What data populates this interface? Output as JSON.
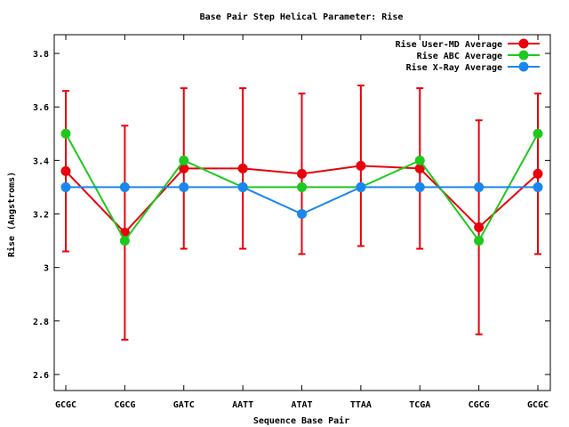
{
  "chart_data": {
    "type": "line",
    "title": "Base Pair Step Helical Parameter: Rise",
    "xlabel": "Sequence Base Pair",
    "ylabel": "Rise (Angstroms)",
    "categories": [
      "GCGC",
      "CGCG",
      "GATC",
      "AATT",
      "ATAT",
      "TTAA",
      "TCGA",
      "CGCG",
      "GCGC"
    ],
    "ylim": [
      2.54,
      3.87
    ],
    "yticks": [
      2.6,
      2.8,
      3,
      3.2,
      3.4,
      3.6,
      3.8
    ],
    "ytick_labels": [
      "2.6",
      "2.8",
      "3",
      "3.2",
      "3.4",
      "3.6",
      "3.8"
    ],
    "grid": false,
    "legend_position": "top-right",
    "series": [
      {
        "name": "Rise User-MD Average",
        "color": "#e8000b",
        "values": [
          3.36,
          3.13,
          3.37,
          3.37,
          3.35,
          3.38,
          3.37,
          3.15,
          3.35
        ],
        "error_low": [
          3.06,
          2.73,
          3.07,
          3.07,
          3.05,
          3.08,
          3.07,
          2.75,
          3.05
        ],
        "error_high": [
          3.66,
          3.53,
          3.67,
          3.67,
          3.65,
          3.68,
          3.67,
          3.55,
          3.65
        ]
      },
      {
        "name": "Rise ABC Average",
        "color": "#1ec81e",
        "values": [
          3.5,
          3.1,
          3.4,
          3.3,
          3.3,
          3.3,
          3.4,
          3.1,
          3.5
        ]
      },
      {
        "name": "Rise X-Ray Average",
        "color": "#1a86ee",
        "values": [
          3.3,
          3.3,
          3.3,
          3.3,
          3.2,
          3.3,
          3.3,
          3.3,
          3.3
        ]
      }
    ]
  }
}
